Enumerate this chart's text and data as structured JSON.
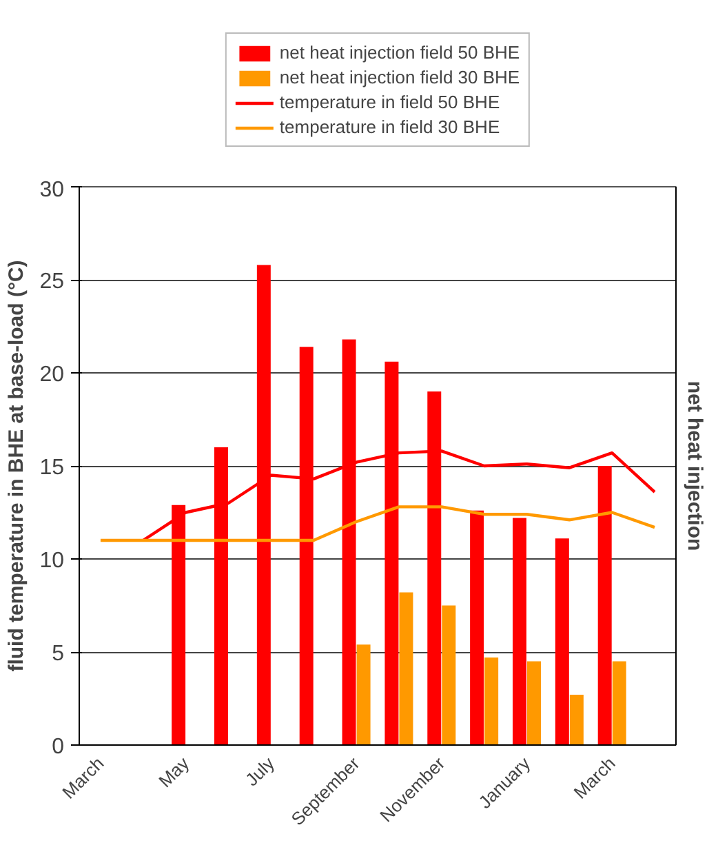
{
  "chart_data": {
    "type": "bar",
    "ylabel": "fluid temperature in BHE at base-load (°C)",
    "y2label": "net heat injection",
    "categories": [
      "March",
      null,
      "May",
      null,
      "July",
      null,
      "September",
      null,
      "November",
      null,
      "January",
      null,
      "March",
      null
    ],
    "series": [
      {
        "name": "net heat injection field 50 BHE",
        "color": "#ff0000",
        "values": [
          null,
          null,
          12.9,
          16.0,
          25.8,
          21.4,
          21.8,
          20.6,
          19.0,
          12.6,
          12.2,
          11.1,
          15.0,
          null
        ]
      },
      {
        "name": "net heat injection field 30 BHE",
        "color": "#ff9900",
        "values": [
          null,
          null,
          null,
          null,
          null,
          null,
          5.4,
          8.2,
          7.5,
          4.7,
          4.5,
          2.7,
          4.5,
          null
        ]
      },
      {
        "name": "temperature in field 50 BHE",
        "type": "line",
        "color": "#ff0000",
        "values": [
          null,
          11.0,
          12.5,
          13.0,
          14.5,
          14.3,
          15.2,
          15.7,
          15.8,
          15.0,
          15.1,
          14.9,
          15.7,
          13.6
        ]
      },
      {
        "name": "temperature in field 30 BHE",
        "type": "line",
        "color": "#ff9900",
        "values": [
          11.0,
          11.0,
          11.0,
          11.0,
          11.0,
          11.0,
          12.0,
          12.8,
          12.8,
          12.4,
          12.4,
          12.1,
          12.5,
          11.7
        ]
      }
    ],
    "ylim": [
      0,
      30
    ],
    "yticks": [
      0,
      5,
      10,
      15,
      20,
      25,
      30
    ],
    "grid": "y",
    "legend": "top",
    "marker": "none",
    "line_style": "solid"
  }
}
